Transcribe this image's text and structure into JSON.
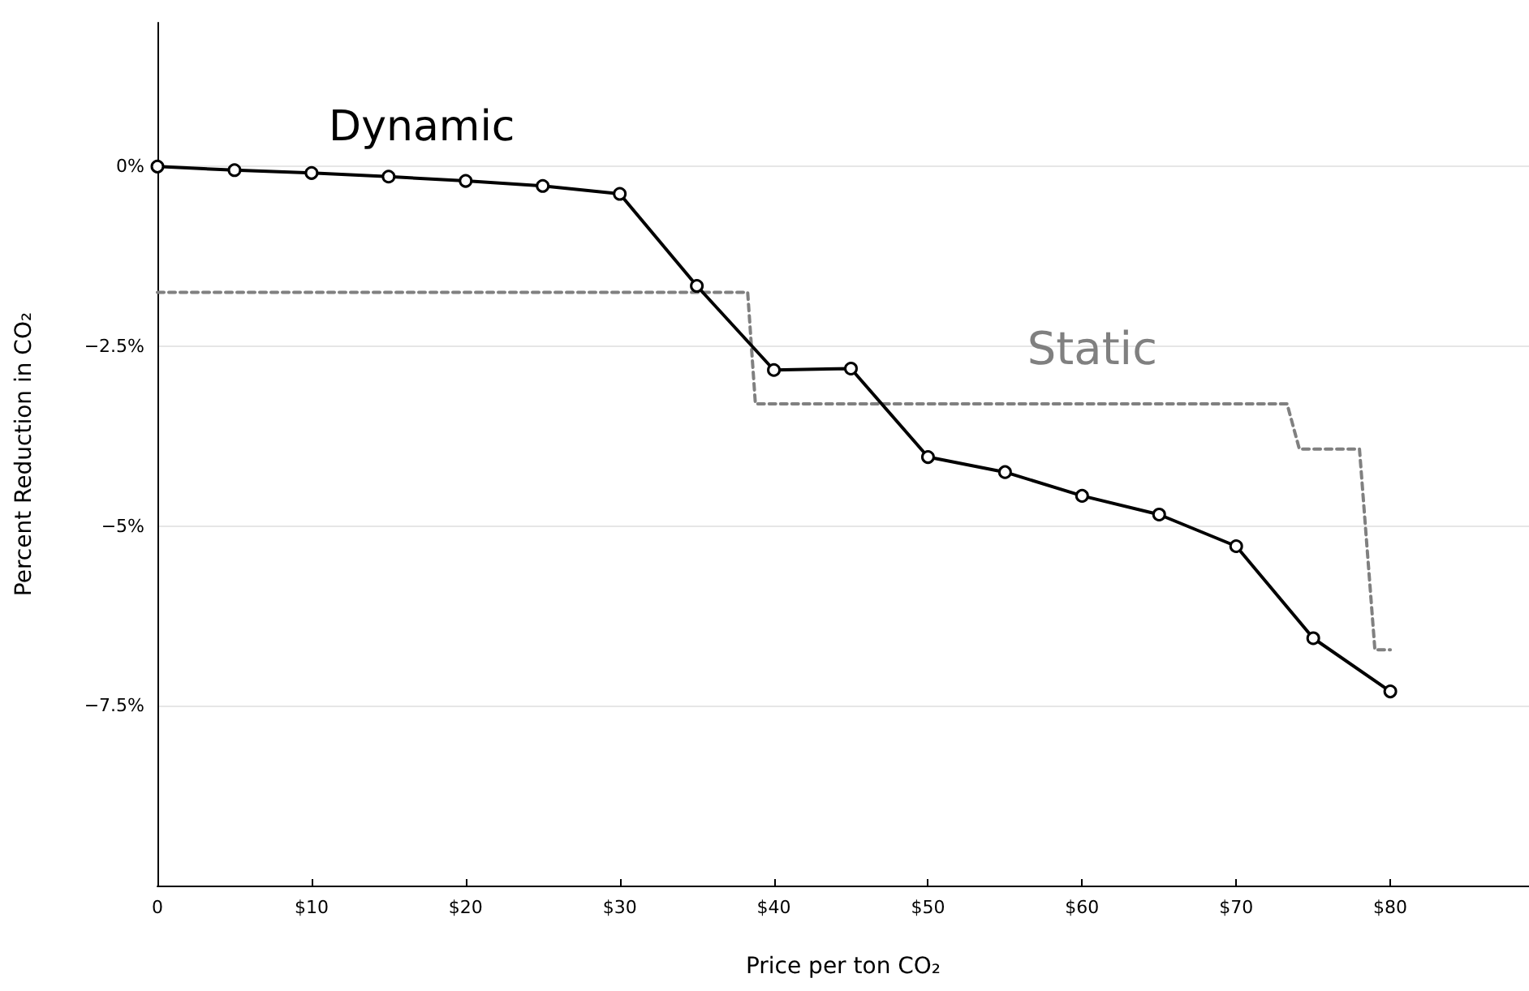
{
  "chart_data": {
    "type": "line",
    "xlabel": "Price per ton CO₂",
    "ylabel": "Percent Reduction in CO₂",
    "xlim": [
      0,
      89
    ],
    "xticks": [
      0,
      {
        "value": 10,
        "label": "$10"
      },
      {
        "value": 20,
        "label": "$20"
      },
      {
        "value": 30,
        "label": "$30"
      },
      {
        "value": 40,
        "label": "$40"
      },
      {
        "value": 50,
        "label": "$50"
      },
      {
        "value": 60,
        "label": "$60"
      },
      {
        "value": 70,
        "label": "$70"
      },
      {
        "value": 80,
        "label": "$80"
      }
    ],
    "ylim": [
      -10,
      2
    ],
    "yticks": [
      {
        "value": 0,
        "label": "0%"
      },
      {
        "value": -2.5,
        "label": "−2.5%"
      },
      {
        "value": -5,
        "label": "−5%"
      },
      {
        "value": -7.5,
        "label": "−7.5%"
      }
    ],
    "grid": "y",
    "legend": false,
    "series": [
      {
        "name": "Dynamic",
        "color": "#000000",
        "marker": "circle",
        "line_style": "solid",
        "x": [
          0,
          5,
          10,
          15,
          20,
          25,
          30,
          35,
          40,
          45,
          50,
          55,
          60,
          65,
          70,
          75,
          80
        ],
        "values": [
          0,
          -0.05,
          -0.09,
          -0.14,
          -0.2,
          -0.27,
          -0.38,
          -1.66,
          -2.83,
          -2.81,
          -4.04,
          -4.25,
          -4.58,
          -4.84,
          -5.28,
          -6.56,
          -7.3
        ]
      },
      {
        "name": "Static",
        "color": "#808080",
        "marker": "none",
        "line_style": "dashed",
        "x": [
          0,
          38.3,
          38.8,
          73.3,
          74.1,
          78,
          79,
          80
        ],
        "values": [
          -1.75,
          -1.75,
          -3.3,
          -3.3,
          -3.93,
          -3.93,
          -6.72,
          -6.72
        ]
      }
    ]
  }
}
